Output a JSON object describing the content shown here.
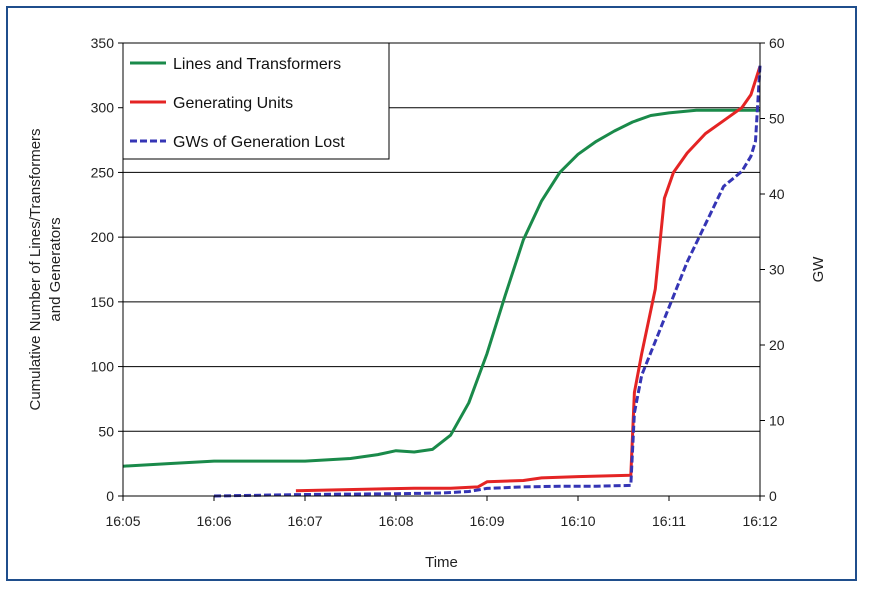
{
  "chart_data": {
    "type": "line",
    "title": "",
    "xlabel": "Time",
    "ylabel": "Cumulative Number of Lines/Transformers and Generators",
    "ylabel_lines": [
      "Cumulative Number of Lines/Transformers",
      "and Generators"
    ],
    "y2label": "GW",
    "x_ticks": [
      "16:05",
      "16:06",
      "16:07",
      "16:08",
      "16:09",
      "16:10",
      "16:11",
      "16:12"
    ],
    "x_range_minutes": [
      0,
      7
    ],
    "ylim": [
      0,
      350
    ],
    "y_ticks": [
      0,
      50,
      100,
      150,
      200,
      250,
      300,
      350
    ],
    "y2lim": [
      0,
      60
    ],
    "y2_ticks": [
      0,
      10,
      20,
      30,
      40,
      50,
      60
    ],
    "grid": "horizontal",
    "legend_position": "top-left",
    "series": [
      {
        "name": "Lines and Transformers",
        "color": "#1a8a4a",
        "axis": "left",
        "style": "solid",
        "x": [
          0,
          0.5,
          1,
          1.5,
          2,
          2.5,
          2.8,
          3.0,
          3.2,
          3.4,
          3.6,
          3.8,
          4.0,
          4.2,
          4.4,
          4.6,
          4.8,
          5.0,
          5.2,
          5.4,
          5.6,
          5.8,
          6.0,
          6.3,
          6.6,
          7.0
        ],
        "y": [
          23,
          25,
          27,
          27,
          27,
          29,
          32,
          35,
          34,
          36,
          47,
          72,
          110,
          155,
          198,
          228,
          250,
          264,
          274,
          282,
          289,
          294,
          296,
          298,
          298,
          298
        ]
      },
      {
        "name": "Generating Units",
        "color": "#e42424",
        "axis": "left",
        "style": "solid",
        "x": [
          1.9,
          3.2,
          3.6,
          3.9,
          4.0,
          4.4,
          4.6,
          5.0,
          5.58,
          5.62,
          5.7,
          5.85,
          5.95,
          6.05,
          6.2,
          6.4,
          6.6,
          6.8,
          6.9,
          7.0
        ],
        "y": [
          4,
          6,
          6,
          7,
          11,
          12,
          14,
          15,
          16,
          80,
          110,
          160,
          230,
          250,
          265,
          280,
          290,
          300,
          310,
          332
        ]
      },
      {
        "name": "GWs of Generation Lost",
        "color": "#3535b5",
        "axis": "right",
        "style": "dashed",
        "x": [
          1.0,
          2.0,
          3.0,
          3.5,
          3.8,
          4.0,
          4.4,
          4.8,
          5.2,
          5.58,
          5.62,
          5.7,
          5.8,
          6.0,
          6.2,
          6.4,
          6.6,
          6.8,
          6.9,
          6.95,
          7.0
        ],
        "y": [
          0,
          0.2,
          0.3,
          0.4,
          0.6,
          1.0,
          1.2,
          1.3,
          1.3,
          1.4,
          11,
          16,
          19,
          25,
          31,
          36,
          41,
          43,
          45,
          47,
          57
        ]
      }
    ]
  }
}
